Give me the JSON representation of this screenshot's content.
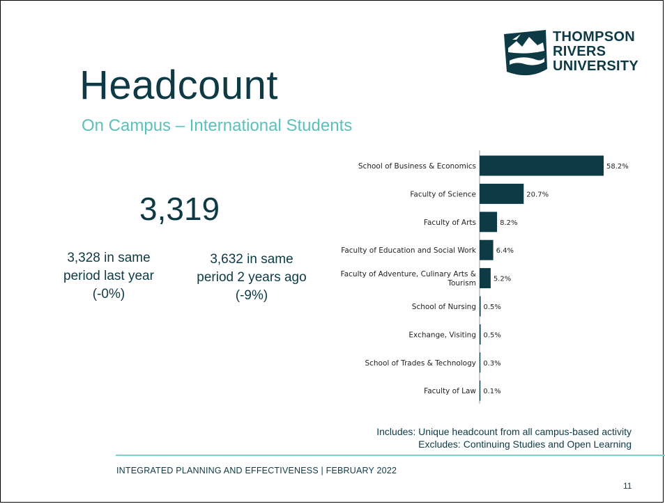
{
  "slide": {
    "title": "Headcount",
    "subtitle": "On Campus – International Students",
    "headline_value": "3,319",
    "comparison_1": [
      "3,328 in same",
      "period last year",
      "(-0%)"
    ],
    "comparison_2": [
      "3,632 in same",
      "period 2 years ago",
      "(-9%)"
    ],
    "notes": [
      "Includes: Unique headcount from all campus-based activity",
      "Excludes: Continuing Studies and Open Learning"
    ],
    "footer": "INTEGRATED PLANNING AND EFFECTIVENESS | FEBRUARY 2022",
    "page_number": "11"
  },
  "logo": {
    "lines": [
      "THOMPSON",
      "RIVERS",
      "UNIVERSITY"
    ],
    "icon": "mountain-river-shield-icon"
  },
  "colors": {
    "primary": "#0d3a45",
    "accent": "#5bc0bb",
    "bar": "#0d3a45",
    "rule": "#7fcfcb"
  },
  "chart_data": {
    "type": "bar",
    "orientation": "horizontal",
    "categories": [
      [
        "School of Business & Economics"
      ],
      [
        "Faculty of Science"
      ],
      [
        "Faculty of Arts"
      ],
      [
        "Faculty of Education and Social Work"
      ],
      [
        "Faculty of Adventure, Culinary Arts &",
        "Tourism"
      ],
      [
        "School of Nursing"
      ],
      [
        "Exchange, Visiting"
      ],
      [
        "School of Trades & Technology"
      ],
      [
        "Faculty of Law"
      ]
    ],
    "values": [
      58.2,
      20.7,
      8.2,
      6.4,
      5.2,
      0.5,
      0.5,
      0.3,
      0.1
    ],
    "data_labels": [
      "58.2%",
      "20.7%",
      "8.2%",
      "6.4%",
      "5.2%",
      "0.5%",
      "0.5%",
      "0.3%",
      "0.1%"
    ],
    "value_unit": "%",
    "xlim": [
      0,
      100
    ],
    "grid": false,
    "legend": "none"
  }
}
